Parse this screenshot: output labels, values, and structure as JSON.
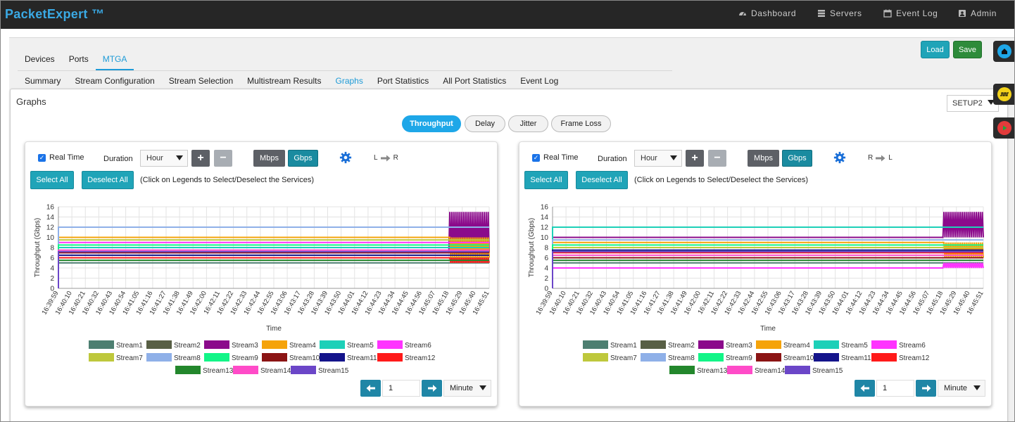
{
  "app": {
    "brand": "PacketExpert ™"
  },
  "topnav": [
    {
      "label": "Dashboard",
      "icon": "dashboard-icon"
    },
    {
      "label": "Servers",
      "icon": "servers-icon"
    },
    {
      "label": "Event Log",
      "icon": "calendar-icon"
    },
    {
      "label": "Admin",
      "icon": "user-icon"
    }
  ],
  "tabs_primary": [
    "Devices",
    "Ports",
    "MTGA"
  ],
  "tabs_primary_active": "MTGA",
  "tabs_secondary": [
    "Summary",
    "Stream Configuration",
    "Stream Selection",
    "Multistream Results",
    "Graphs",
    "Port Statistics",
    "All Port Statistics",
    "Event Log"
  ],
  "tabs_secondary_active": "Graphs",
  "actions": {
    "load": "Load",
    "save": "Save"
  },
  "graphs": {
    "title": "Graphs",
    "setup": "SETUP2",
    "metric_tabs": [
      "Throughput",
      "Delay",
      "Jitter",
      "Frame Loss"
    ],
    "active_metric": "Throughput"
  },
  "colors": {
    "accent": "#1ea7e8",
    "teal": "#20a4b8",
    "green": "#2e8b3a",
    "dark": "#262626"
  },
  "panels": [
    {
      "real_time_label": "Real Time",
      "real_time_checked": true,
      "duration_label": "Duration",
      "duration_value": "Hour",
      "plus": "+",
      "minus": "−",
      "unit_mbps": "Mbps",
      "unit_gbps": "Gbps",
      "active_unit": "Gbps",
      "direction_from": "L",
      "direction_to": "R",
      "select_all": "Select All",
      "deselect_all": "Deselect All",
      "hint": "(Click on Legends to Select/Deselect the Services)",
      "page_value": "1",
      "page_unit": "Minute"
    },
    {
      "real_time_label": "Real Time",
      "real_time_checked": true,
      "duration_label": "Duration",
      "duration_value": "Hour",
      "plus": "+",
      "minus": "−",
      "unit_mbps": "Mbps",
      "unit_gbps": "Gbps",
      "active_unit": "Gbps",
      "direction_from": "R",
      "direction_to": "L",
      "select_all": "Select All",
      "deselect_all": "Deselect All",
      "hint": "(Click on Legends to Select/Deselect the Services)",
      "page_value": "1",
      "page_unit": "Minute"
    }
  ],
  "chart_data": [
    {
      "type": "line",
      "title": "",
      "xlabel": "Time",
      "ylabel": "Throughput (Gbps)",
      "ylim": [
        0,
        16
      ],
      "yticks": [
        0,
        2,
        4,
        6,
        8,
        10,
        12,
        14,
        16
      ],
      "categories": [
        "16:39:59",
        "16:40:10",
        "16:40:21",
        "16:40:32",
        "16:40:43",
        "16:40:54",
        "16:41:05",
        "16:41:16",
        "16:41:27",
        "16:41:38",
        "16:41:49",
        "16:42:00",
        "16:42:11",
        "16:42:22",
        "16:42:33",
        "16:42:44",
        "16:42:55",
        "16:43:06",
        "16:43:17",
        "16:43:28",
        "16:43:39",
        "16:43:50",
        "16:44:01",
        "16:44:12",
        "16:44:23",
        "16:44:34",
        "16:44:45",
        "16:44:56",
        "16:45:07",
        "16:45:18",
        "16:45:29",
        "16:45:40",
        "16:45:51"
      ],
      "grid": true,
      "legend_position": "bottom",
      "oscillation_start": "16:45:18",
      "series": [
        {
          "name": "Stream1",
          "color": "#4d7f71",
          "value": 5.0
        },
        {
          "name": "Stream2",
          "color": "#585f45",
          "value": 6.0
        },
        {
          "name": "Stream3",
          "color": "#8b0a8b",
          "value": 7.0,
          "oscillate": [
            7,
            15
          ]
        },
        {
          "name": "Stream4",
          "color": "#f5a30a",
          "value": 10.0,
          "oscillate": [
            6,
            10
          ]
        },
        {
          "name": "Stream5",
          "color": "#1dd0b8",
          "value": 8.0
        },
        {
          "name": "Stream6",
          "color": "#ff33ff",
          "value": 9.0
        },
        {
          "name": "Stream7",
          "color": "#bec83c",
          "value": 9.5
        },
        {
          "name": "Stream8",
          "color": "#8fb0e8",
          "value": 12.0
        },
        {
          "name": "Stream9",
          "color": "#12f587",
          "value": 8.5
        },
        {
          "name": "Stream10",
          "color": "#8b1414",
          "value": 7.0
        },
        {
          "name": "Stream11",
          "color": "#14148b",
          "value": 6.5
        },
        {
          "name": "Stream12",
          "color": "#ff1a1a",
          "value": 6.0,
          "oscillate": [
            5,
            6
          ]
        },
        {
          "name": "Stream13",
          "color": "#23872c",
          "value": 5.5
        },
        {
          "name": "Stream14",
          "color": "#ff4bc8",
          "value": 7.5
        },
        {
          "name": "Stream15",
          "color": "#6b46c8",
          "value": 7.2
        }
      ]
    },
    {
      "type": "line",
      "title": "",
      "xlabel": "Time",
      "ylabel": "Throughput (Gbps)",
      "ylim": [
        0,
        16
      ],
      "yticks": [
        0,
        2,
        4,
        6,
        8,
        10,
        12,
        14,
        16
      ],
      "categories": [
        "16:39:59",
        "16:40:10",
        "16:40:21",
        "16:40:32",
        "16:40:43",
        "16:40:54",
        "16:41:05",
        "16:41:16",
        "16:41:27",
        "16:41:38",
        "16:41:49",
        "16:42:00",
        "16:42:11",
        "16:42:22",
        "16:42:33",
        "16:42:44",
        "16:42:55",
        "16:43:06",
        "16:43:17",
        "16:43:28",
        "16:43:39",
        "16:43:50",
        "16:44:01",
        "16:44:12",
        "16:44:23",
        "16:44:34",
        "16:44:45",
        "16:44:56",
        "16:45:07",
        "16:45:18",
        "16:45:29",
        "16:45:40",
        "16:45:51"
      ],
      "grid": true,
      "legend_position": "bottom",
      "oscillation_start": "16:45:18",
      "series": [
        {
          "name": "Stream1",
          "color": "#4d7f71",
          "value": 5.0
        },
        {
          "name": "Stream2",
          "color": "#585f45",
          "value": 6.0
        },
        {
          "name": "Stream3",
          "color": "#8b0a8b",
          "value": 10.0,
          "oscillate": [
            10,
            15
          ]
        },
        {
          "name": "Stream4",
          "color": "#f5a30a",
          "value": 9.0,
          "oscillate": [
            6,
            9
          ]
        },
        {
          "name": "Stream5",
          "color": "#1dd0b8",
          "value": 12.0
        },
        {
          "name": "Stream6",
          "color": "#ff33ff",
          "value": 4.0,
          "oscillate": [
            4,
            5
          ]
        },
        {
          "name": "Stream7",
          "color": "#bec83c",
          "value": 8.0
        },
        {
          "name": "Stream8",
          "color": "#8fb0e8",
          "value": 9.5
        },
        {
          "name": "Stream9",
          "color": "#12f587",
          "value": 8.5
        },
        {
          "name": "Stream10",
          "color": "#8b1414",
          "value": 6.0
        },
        {
          "name": "Stream11",
          "color": "#14148b",
          "value": 7.5
        },
        {
          "name": "Stream12",
          "color": "#ff1a1a",
          "value": 7.0
        },
        {
          "name": "Stream13",
          "color": "#23872c",
          "value": 5.5
        },
        {
          "name": "Stream14",
          "color": "#ff4bc8",
          "value": 6.5
        },
        {
          "name": "Stream15",
          "color": "#6b46c8",
          "value": 7.2
        }
      ]
    }
  ]
}
